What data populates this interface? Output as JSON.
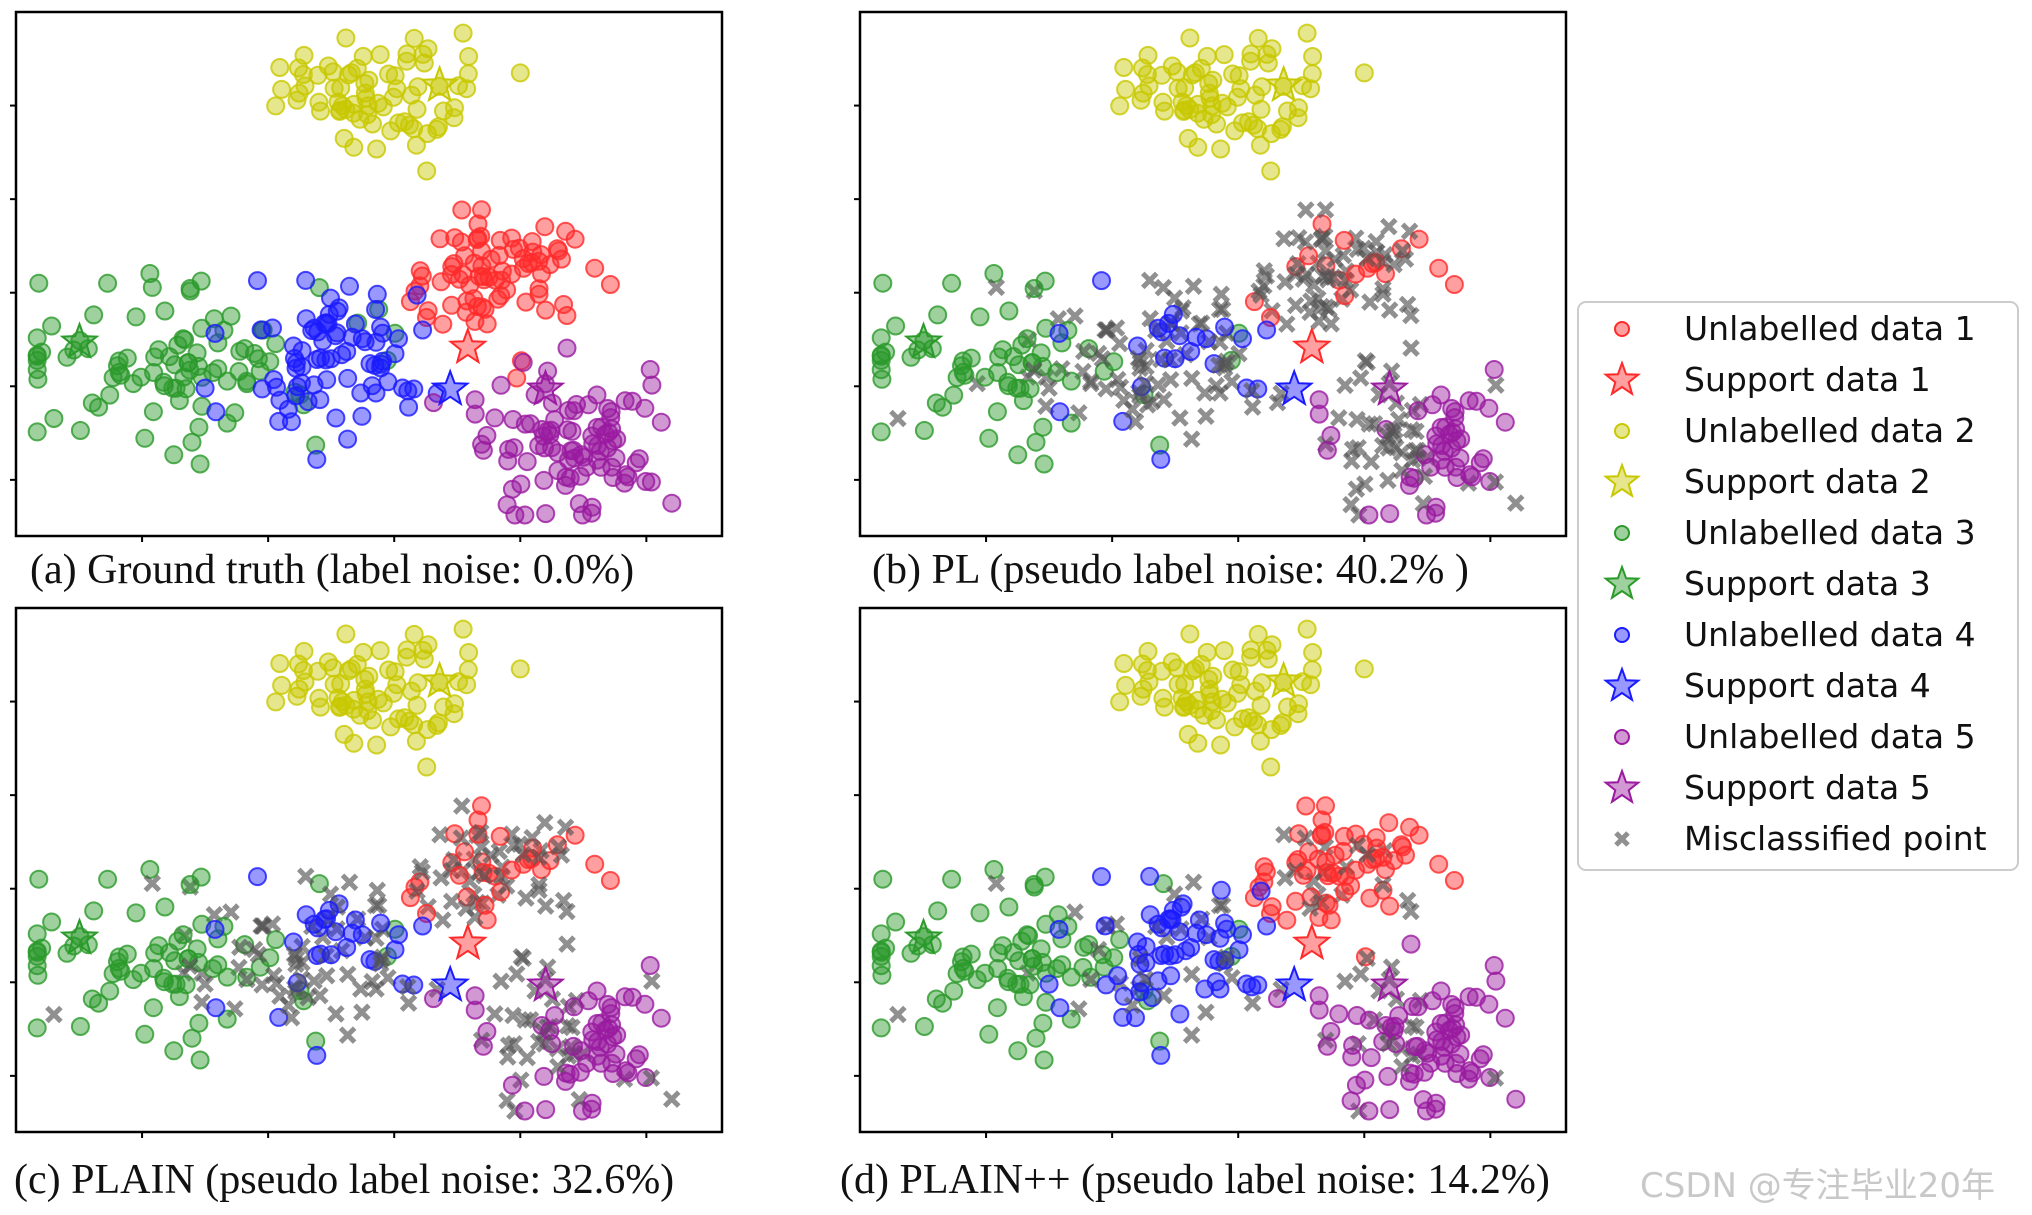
{
  "colors": {
    "class1": "#ff2a2a",
    "class2": "#c8c800",
    "class3": "#2a9a2a",
    "class4": "#1a1aff",
    "class5": "#9a1aa0",
    "misclassified": "#555555"
  },
  "legend": [
    {
      "label": "Unlabelled data 1",
      "marker": "circle",
      "cls": 1
    },
    {
      "label": "Support data 1",
      "marker": "star",
      "cls": 1
    },
    {
      "label": "Unlabelled data 2",
      "marker": "circle",
      "cls": 2
    },
    {
      "label": "Support data 2",
      "marker": "star",
      "cls": 2
    },
    {
      "label": "Unlabelled data 3",
      "marker": "circle",
      "cls": 3
    },
    {
      "label": "Support data 3",
      "marker": "star",
      "cls": 3
    },
    {
      "label": "Unlabelled data 4",
      "marker": "circle",
      "cls": 4
    },
    {
      "label": "Support data 4",
      "marker": "star",
      "cls": 4
    },
    {
      "label": "Unlabelled  data 5",
      "marker": "circle",
      "cls": 5
    },
    {
      "label": "Support data 5",
      "marker": "star",
      "cls": 5
    },
    {
      "label": "Misclassified point",
      "marker": "x",
      "cls": 0
    }
  ],
  "watermark": "CSDN @专注毕业20年",
  "chart_data": [
    {
      "type": "scatter",
      "caption": "(a)  Ground truth (label noise: 0.0%)",
      "noise_percent": 0.0
    },
    {
      "type": "scatter",
      "caption": "(b) PL (pseudo label noise: 40.2% )",
      "noise_percent": 40.2
    },
    {
      "type": "scatter",
      "caption": "(c) PLAIN (pseudo label noise: 32.6%)",
      "noise_percent": 32.6
    },
    {
      "type": "scatter",
      "caption": "(d) PLAIN++ (pseudo label noise: 14.2%)",
      "noise_percent": 14.2
    }
  ]
}
